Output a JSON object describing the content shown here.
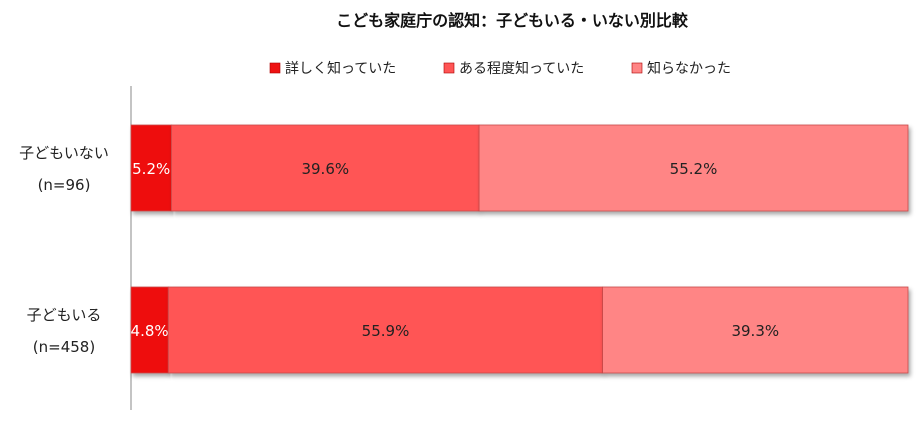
{
  "chart_data": {
    "type": "bar",
    "orientation": "horizontal-stacked-100",
    "title": "こども家庭庁の認知：子どもいる・いない別比較",
    "legend_position": "top",
    "categories": [
      {
        "name": "子どもいない",
        "n": "(n=96)"
      },
      {
        "name": "子どもいる",
        "n": "(n=458)"
      }
    ],
    "series": [
      {
        "name": "詳しく知っていた",
        "color": "#ee1111",
        "label_color": "#ffffff",
        "values": [
          5.2,
          4.8
        ],
        "labels": [
          "5.2%",
          "4.8%"
        ]
      },
      {
        "name": "ある程度知っていた",
        "color": "#ff5555",
        "label_color": "#222222",
        "values": [
          39.6,
          55.9
        ],
        "labels": [
          "39.6%",
          "55.9%"
        ]
      },
      {
        "name": "知らなかった",
        "color": "#ff8585",
        "label_color": "#222222",
        "values": [
          55.2,
          39.3
        ],
        "labels": [
          "55.2%",
          "39.3%"
        ]
      }
    ],
    "xlim": [
      0,
      100
    ],
    "grid": false
  }
}
